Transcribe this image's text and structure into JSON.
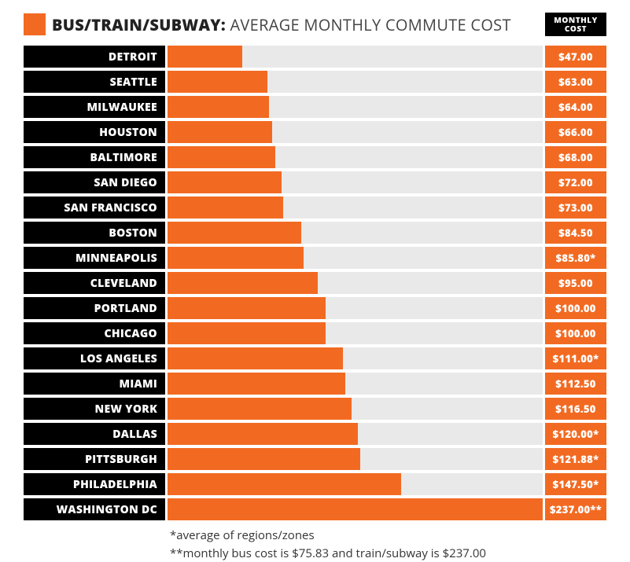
{
  "accent_color": "#f26a22",
  "black": "#000000",
  "track_color": "#e9e9e9",
  "title_bold": "BUS/TRAIN/SUBWAY:",
  "title_rest": " AVERAGE MONTHLY COMMUTE COST",
  "header_cost_top": "MONTHLY",
  "header_cost_bottom": "COST",
  "max_value": 237,
  "rows": [
    {
      "city": "DETROIT",
      "value": 47.0,
      "display": "$47.00"
    },
    {
      "city": "SEATTLE",
      "value": 63.0,
      "display": "$63.00"
    },
    {
      "city": "MILWAUKEE",
      "value": 64.0,
      "display": "$64.00"
    },
    {
      "city": "HOUSTON",
      "value": 66.0,
      "display": "$66.00"
    },
    {
      "city": "BALTIMORE",
      "value": 68.0,
      "display": "$68.00"
    },
    {
      "city": "SAN DIEGO",
      "value": 72.0,
      "display": "$72.00"
    },
    {
      "city": "SAN FRANCISCO",
      "value": 73.0,
      "display": "$73.00"
    },
    {
      "city": "BOSTON",
      "value": 84.5,
      "display": "$84.50"
    },
    {
      "city": "MINNEAPOLIS",
      "value": 85.8,
      "display": "$85.80*"
    },
    {
      "city": "CLEVELAND",
      "value": 95.0,
      "display": "$95.00"
    },
    {
      "city": "PORTLAND",
      "value": 100.0,
      "display": "$100.00"
    },
    {
      "city": "CHICAGO",
      "value": 100.0,
      "display": "$100.00"
    },
    {
      "city": "LOS ANGELES",
      "value": 111.0,
      "display": "$111.00*"
    },
    {
      "city": "MIAMI",
      "value": 112.5,
      "display": "$112.50"
    },
    {
      "city": "NEW YORK",
      "value": 116.5,
      "display": "$116.50"
    },
    {
      "city": "DALLAS",
      "value": 120.0,
      "display": "$120.00*"
    },
    {
      "city": "PITTSBURGH",
      "value": 121.88,
      "display": "$121.88*"
    },
    {
      "city": "PHILADELPHIA",
      "value": 147.5,
      "display": "$147.50*"
    },
    {
      "city": "WASHINGTON DC",
      "value": 237.0,
      "display": "$237.00**"
    }
  ],
  "footnote1": "*average of regions/zones",
  "footnote2": "**monthly bus cost is $75.83 and train/subway is $237.00"
}
